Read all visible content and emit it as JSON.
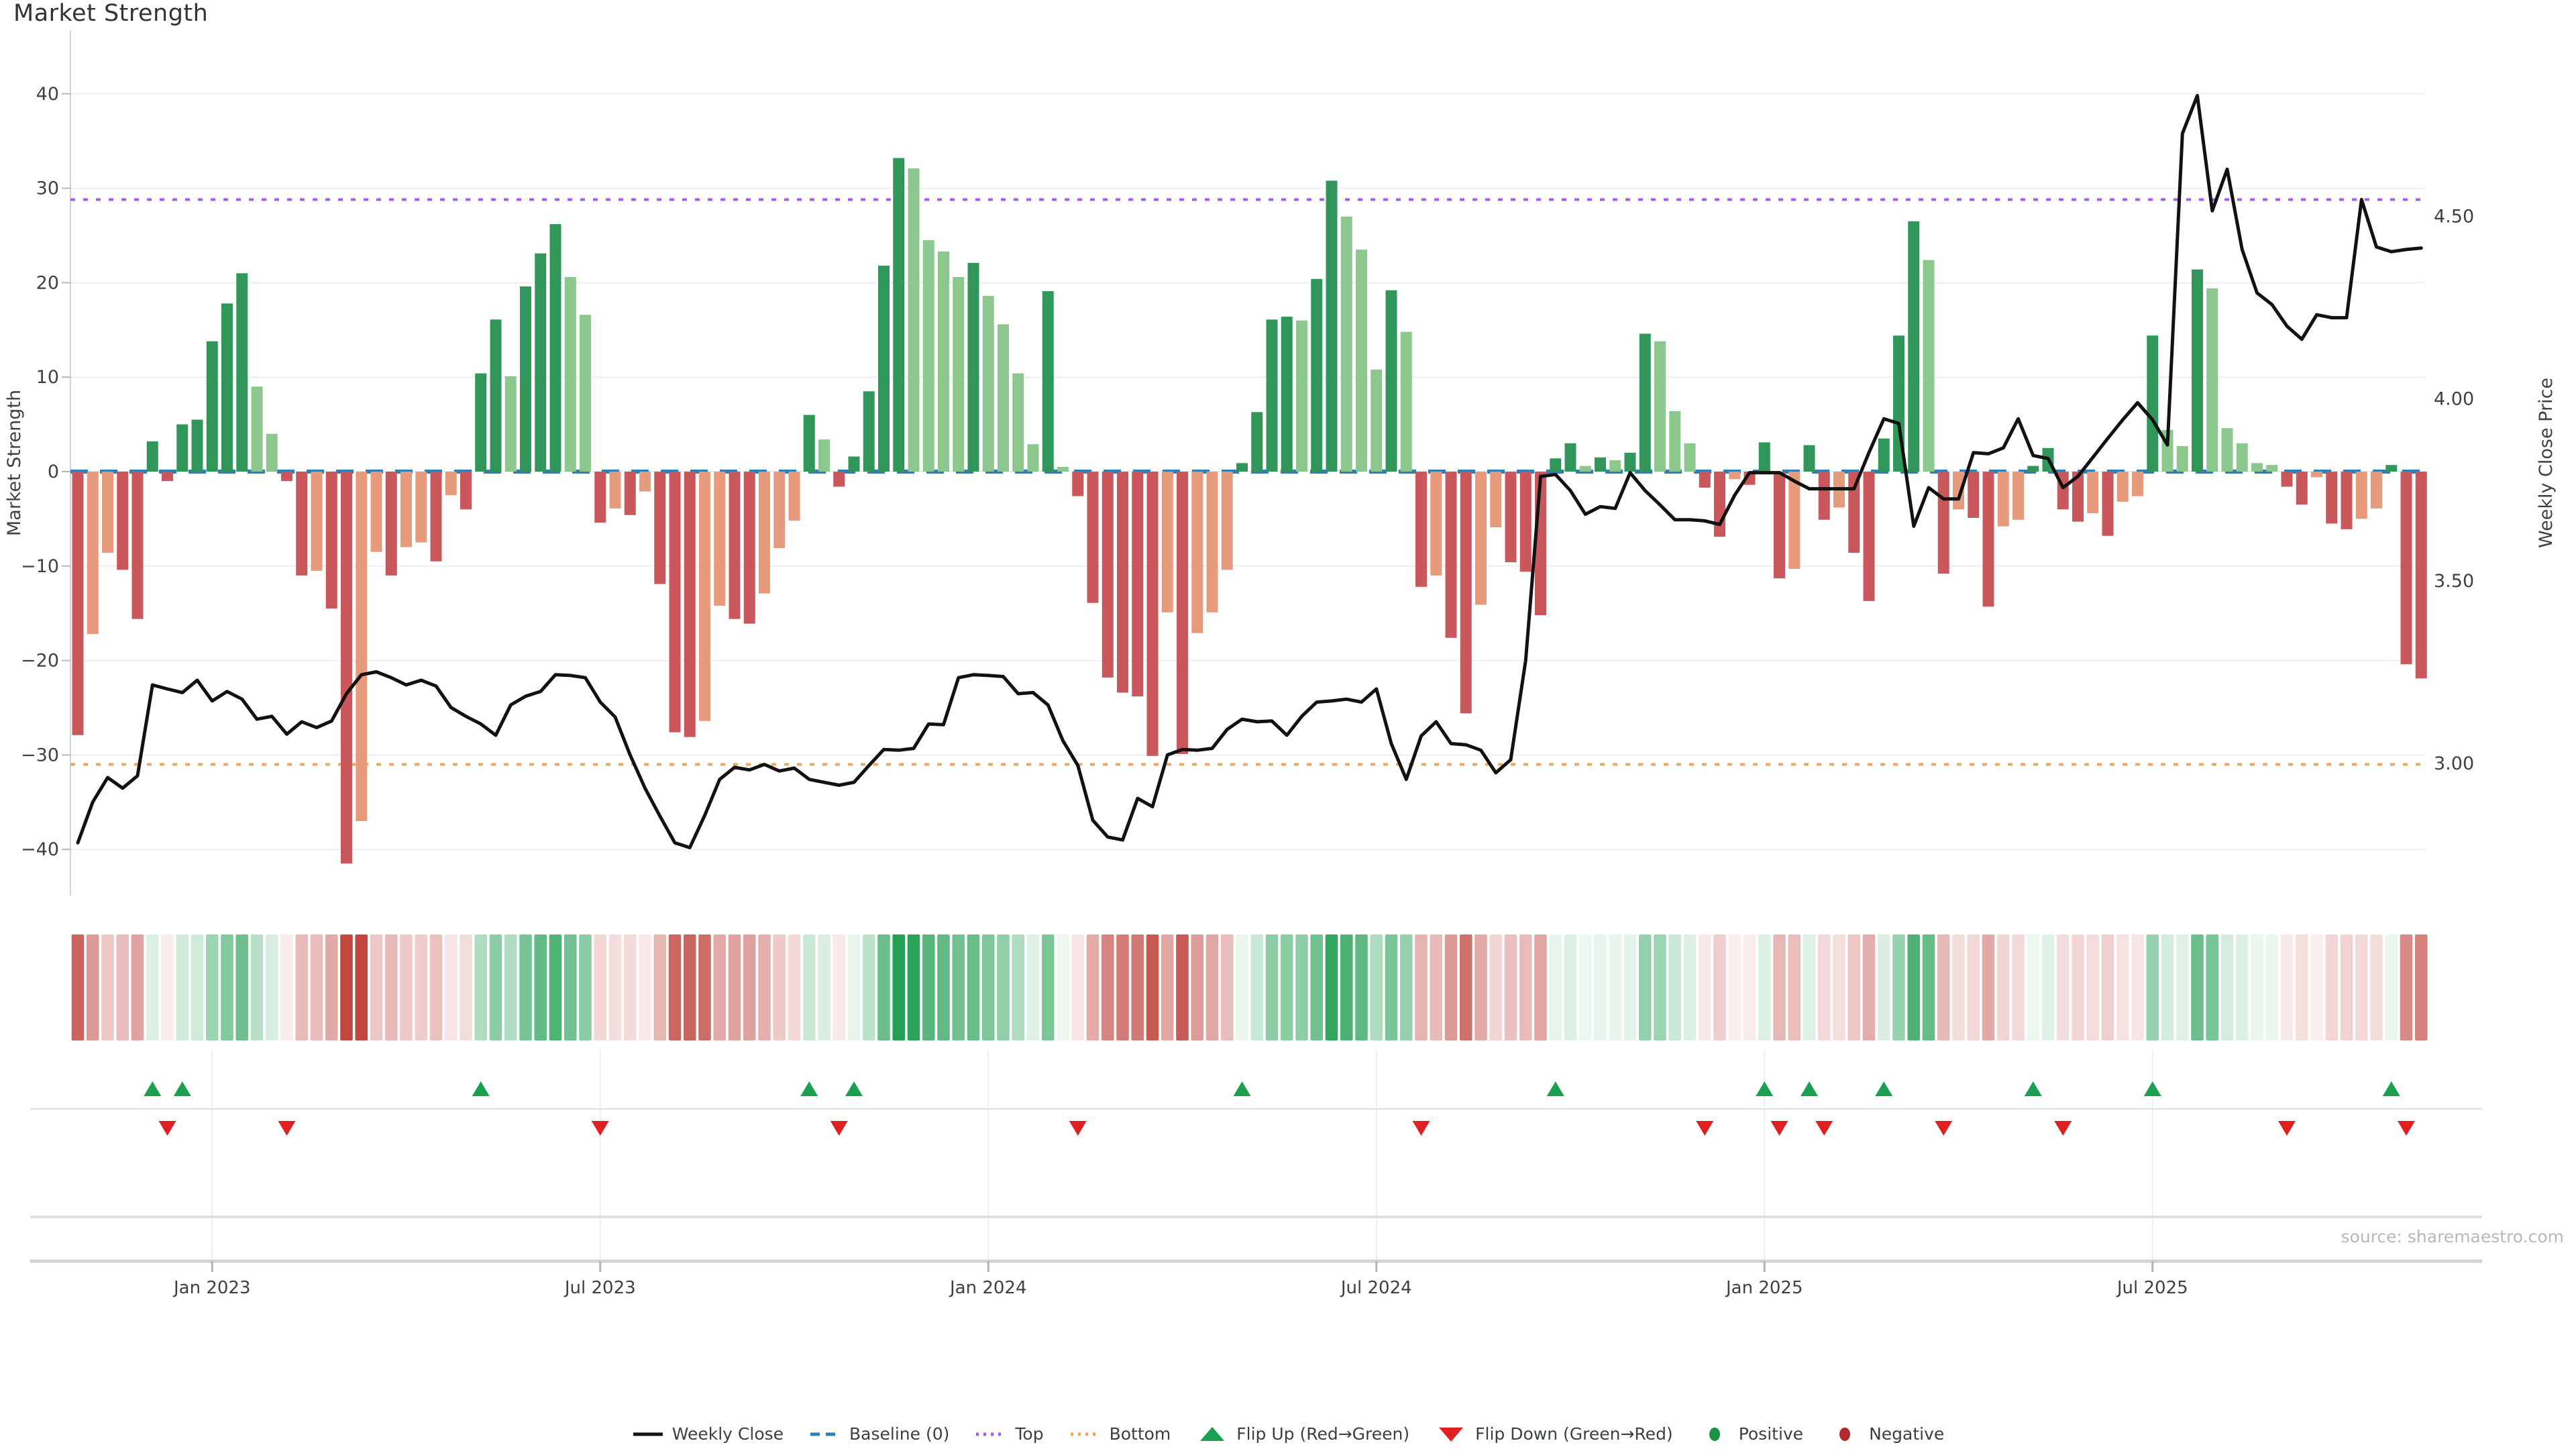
{
  "title": "Market Strength",
  "source": "source: sharemaestro.com",
  "left_axis": {
    "label": "Market Strength",
    "tick_values": [
      40,
      30,
      20,
      10,
      0,
      -10,
      -20,
      -30,
      -40
    ],
    "tick_labels": [
      "40",
      "30",
      "20",
      "10",
      "0",
      "−10",
      "−20",
      "−30",
      "−40"
    ]
  },
  "right_axis": {
    "label": "Weekly Close Price",
    "tick_prices": [
      4.5,
      4.0,
      3.5,
      3.0
    ],
    "tick_labels": [
      "4.50",
      "4.00",
      "3.50",
      "3.00"
    ]
  },
  "x_axis": {
    "ticks": [
      {
        "label": "Jan 2023",
        "week": 9
      },
      {
        "label": "Jul 2023",
        "week": 35
      },
      {
        "label": "Jan 2024",
        "week": 61
      },
      {
        "label": "Jul 2024",
        "week": 87
      },
      {
        "label": "Jan 2025",
        "week": 113
      },
      {
        "label": "Jul 2025",
        "week": 139
      }
    ]
  },
  "legend": [
    {
      "label": "Weekly Close",
      "type": "line",
      "color": "#111111"
    },
    {
      "label": "Baseline (0)",
      "type": "dash",
      "color": "#2e7fb5"
    },
    {
      "label": "Top",
      "type": "dots",
      "color": "#a55ce6"
    },
    {
      "label": "Bottom",
      "type": "dots",
      "color": "#f0a45c"
    },
    {
      "label": "Flip Up (Red→Green)",
      "type": "tri-up",
      "color": "#1aa04f"
    },
    {
      "label": "Flip Down (Green→Red)",
      "type": "tri-down",
      "color": "#e02020"
    },
    {
      "label": "Positive",
      "type": "dot",
      "color": "#1d9048"
    },
    {
      "label": "Negative",
      "type": "dot",
      "color": "#b02a30"
    }
  ],
  "colors": {
    "bar_positive_strong": "#31965a",
    "bar_positive_weak": "#8cc78d",
    "bar_negative_strong": "#c9575b",
    "bar_negative_weak": "#e79a7c",
    "baseline": "#2e7fb5",
    "top_line": "#a55ce6",
    "bottom_line": "#f0a45c",
    "close_line": "#121212",
    "heat_positive": "#1f9e50",
    "heat_negative": "#c1463f",
    "flip_up": "#1aa04f",
    "flip_down": "#e02020",
    "grid": "#ededf2",
    "axis_text": "#3d4146",
    "source_text": "#b8b8b8"
  },
  "chart_data": {
    "type": "bar+line",
    "title": "Market Strength",
    "x_unit": "week",
    "x_range_label": "Nov 2022 - Oct 2025",
    "left_ylabel": "Market Strength",
    "right_ylabel": "Weekly Close Price",
    "left_ylim": [
      -44.7,
      46.7
    ],
    "baseline": 0,
    "top_threshold": 28.8,
    "bottom_threshold": -31.0,
    "right_axis": {
      "baseline_price": 3.8,
      "price_per_unit": 0.0259
    },
    "series": [
      {
        "name": "Market Strength",
        "type": "bar",
        "values": [
          -27.9,
          -17.2,
          -8.6,
          -10.4,
          -15.6,
          3.2,
          -1,
          5,
          5.5,
          13.8,
          17.8,
          21,
          9,
          4,
          -1,
          -11,
          -10.5,
          -14.5,
          -41.5,
          -37,
          -8.5,
          -11,
          -8,
          -7.5,
          -9.5,
          -2.5,
          -4,
          10.4,
          16.1,
          10.1,
          19.6,
          23.1,
          26.2,
          20.6,
          16.6,
          -5.4,
          -3.9,
          -4.6,
          -2.1,
          -11.9,
          -27.6,
          -28.1,
          -26.4,
          -14.2,
          -15.6,
          -16.1,
          -12.9,
          -8.1,
          -5.2,
          6,
          3.4,
          -1.6,
          1.6,
          8.5,
          21.8,
          33.2,
          32.1,
          24.5,
          23.3,
          20.6,
          22.1,
          18.6,
          15.6,
          10.4,
          2.9,
          19.1,
          0.5,
          -2.6,
          -13.9,
          -21.8,
          -23.4,
          -23.8,
          -30.1,
          -14.9,
          -29.9,
          -17.1,
          -14.9,
          -10.4,
          0.9,
          6.3,
          16.1,
          16.4,
          16,
          20.4,
          30.8,
          27,
          23.5,
          10.8,
          19.2,
          14.8,
          -12.2,
          -11,
          -17.6,
          -25.6,
          -14.1,
          -5.9,
          -9.6,
          -10.6,
          -15.2,
          1.4,
          3,
          0.6,
          1.5,
          1.2,
          2,
          14.6,
          13.8,
          6.4,
          3,
          -1.7,
          -6.9,
          -0.8,
          -1.4,
          3.1,
          -11.3,
          -10.3,
          2.8,
          -5.1,
          -3.8,
          -8.6,
          -13.7,
          3.5,
          14.4,
          26.5,
          22.4,
          -10.8,
          -4,
          -4.9,
          -14.3,
          -5.8,
          -5.1,
          0.6,
          2.5,
          -4,
          -5.3,
          -4.4,
          -6.8,
          -3.2,
          -2.6,
          14.4,
          4.4,
          2.7,
          21.4,
          19.4,
          4.6,
          3,
          0.9,
          0.7,
          -1.6,
          -3.5,
          -0.6,
          -5.5,
          -6.1,
          -5,
          -3.9,
          0.7,
          -20.4,
          -21.9
        ]
      },
      {
        "name": "Weekly Close",
        "type": "line",
        "values": [
          2.782,
          2.894,
          2.961,
          2.932,
          2.966,
          3.215,
          3.204,
          3.194,
          3.228,
          3.171,
          3.197,
          3.176,
          3.121,
          3.129,
          3.08,
          3.114,
          3.098,
          3.116,
          3.191,
          3.243,
          3.251,
          3.235,
          3.215,
          3.228,
          3.212,
          3.153,
          3.129,
          3.108,
          3.077,
          3.16,
          3.184,
          3.197,
          3.243,
          3.241,
          3.235,
          3.168,
          3.127,
          3.023,
          2.932,
          2.855,
          2.782,
          2.769,
          2.857,
          2.956,
          2.989,
          2.982,
          2.997,
          2.979,
          2.987,
          2.956,
          2.948,
          2.94,
          2.948,
          2.994,
          3.038,
          3.036,
          3.041,
          3.108,
          3.106,
          3.235,
          3.243,
          3.241,
          3.238,
          3.191,
          3.194,
          3.16,
          3.062,
          2.994,
          2.844,
          2.798,
          2.79,
          2.904,
          2.881,
          3.023,
          3.038,
          3.036,
          3.041,
          3.093,
          3.121,
          3.114,
          3.116,
          3.077,
          3.129,
          3.168,
          3.171,
          3.176,
          3.168,
          3.204,
          3.054,
          2.956,
          3.075,
          3.114,
          3.054,
          3.051,
          3.036,
          2.974,
          3.01,
          3.282,
          3.787,
          3.792,
          3.748,
          3.683,
          3.704,
          3.699,
          3.797,
          3.748,
          3.709,
          3.668,
          3.668,
          3.665,
          3.655,
          3.735,
          3.797,
          3.797,
          3.797,
          3.774,
          3.753,
          3.753,
          3.753,
          3.753,
          3.852,
          3.945,
          3.932,
          3.65,
          3.756,
          3.725,
          3.725,
          3.852,
          3.849,
          3.865,
          3.945,
          3.844,
          3.836,
          3.756,
          3.787,
          3.839,
          3.891,
          3.942,
          3.989,
          3.942,
          3.873,
          4.727,
          4.831,
          4.515,
          4.629,
          4.409,
          4.29,
          4.258,
          4.199,
          4.163,
          4.23,
          4.222,
          4.222,
          4.546,
          4.416,
          4.403,
          4.409,
          4.413
        ]
      }
    ],
    "marker_rules": {
      "flip_up": "week where strength turns negative→positive",
      "flip_down": "week where strength turns positive→negative"
    },
    "heatmap": "per-week cell tinted by strength value (red negative, green positive)",
    "legend_position": "bottom-center",
    "grid": "horizontal light gridlines at left-axis ticks"
  }
}
